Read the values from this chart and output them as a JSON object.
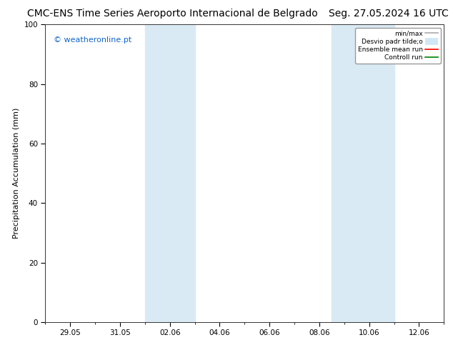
{
  "title_left": "CMC-ENS Time Series Aeroporto Internacional de Belgrado",
  "title_right": "Seg. 27.05.2024 16 UTC",
  "ylabel": "Precipitation Accumulation (mm)",
  "watermark": "© weatheronline.pt",
  "ylim": [
    0,
    100
  ],
  "yticks": [
    0,
    20,
    40,
    60,
    80,
    100
  ],
  "x_tick_labels": [
    "29.05",
    "31.05",
    "02.06",
    "04.06",
    "06.06",
    "08.06",
    "10.06",
    "12.06"
  ],
  "x_tick_positions": [
    0,
    2,
    4,
    6,
    8,
    10,
    12,
    14
  ],
  "xlim": [
    -1,
    15
  ],
  "shaded_regions": [
    {
      "xmin": 3.0,
      "xmax": 5.0
    },
    {
      "xmin": 10.5,
      "xmax": 13.0
    }
  ],
  "shaded_color": "#daeaf5",
  "legend_entries": [
    {
      "label": "min/max",
      "color": "#aaaaaa",
      "lw": 1.2
    },
    {
      "label": "Desvio padr tilde;o",
      "color": "#d0e8f5",
      "lw": 7
    },
    {
      "label": "Ensemble mean run",
      "color": "red",
      "lw": 1.2
    },
    {
      "label": "Controll run",
      "color": "green",
      "lw": 1.2
    }
  ],
  "background_color": "#ffffff",
  "title_fontsize": 10,
  "label_fontsize": 8,
  "tick_fontsize": 7.5,
  "watermark_color": "#1166cc",
  "watermark_fontsize": 8,
  "figsize": [
    6.34,
    4.9
  ],
  "dpi": 100
}
